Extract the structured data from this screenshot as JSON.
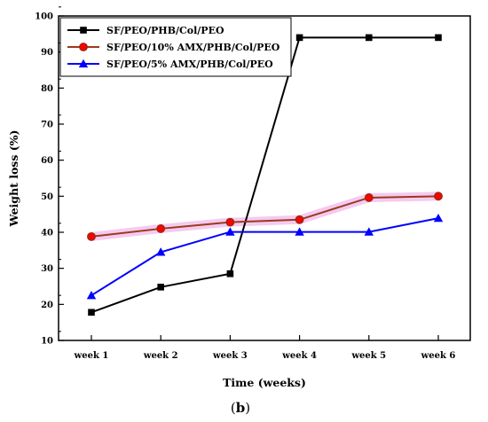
{
  "chart_data": {
    "type": "line",
    "title": "",
    "xlabel": "Time (weeks)",
    "ylabel": "Weight loss (%)",
    "categories": [
      "week 1",
      "week 2",
      "week 3",
      "week 4",
      "week 5",
      "week 6"
    ],
    "ylim": [
      10,
      100
    ],
    "yticks": [
      10,
      20,
      30,
      40,
      50,
      60,
      70,
      80,
      90,
      100
    ],
    "grid": false,
    "legend_position": "top-left",
    "series": [
      {
        "name": "SF/PEO/PHB/Col/PEO",
        "values": [
          17.8,
          24.8,
          28.5,
          94.0,
          94.0,
          94.0
        ],
        "color": "#000000",
        "marker": "square"
      },
      {
        "name": "SF/PEO/10% AMX/PHB/Col/PEO",
        "values": [
          38.8,
          41.0,
          42.8,
          43.5,
          49.6,
          50.0
        ],
        "color": "#ff0000",
        "marker": "circle"
      },
      {
        "name": "SF/PEO/5% AMX/PHB/Col/PEO",
        "values": [
          22.5,
          34.5,
          40.1,
          40.1,
          40.1,
          43.9
        ],
        "color": "#0000ff",
        "marker": "triangle"
      }
    ],
    "panel_label": {
      "open": "(",
      "letter": "b",
      "close": ")"
    }
  }
}
